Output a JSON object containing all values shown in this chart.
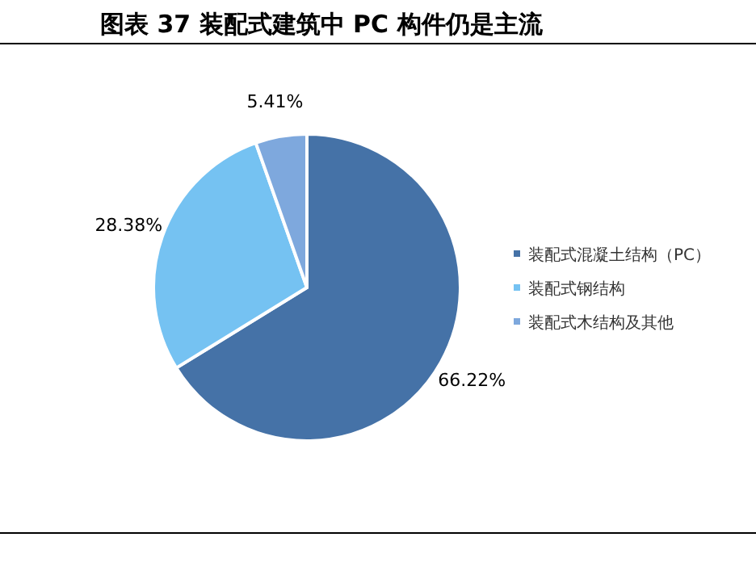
{
  "chart_data": {
    "type": "pie",
    "title": "图表 37 装配式建筑中 PC 构件仍是主流",
    "categories": [
      "装配式混凝土结构（PC）",
      "装配式钢结构",
      "装配式木结构及其他"
    ],
    "values": [
      66.22,
      28.38,
      5.41
    ],
    "value_labels": [
      "66.22%",
      "28.38%",
      "5.41%"
    ],
    "colors": [
      "#4572a7",
      "#75c2f2",
      "#7ea8dd"
    ],
    "legend": "right"
  }
}
